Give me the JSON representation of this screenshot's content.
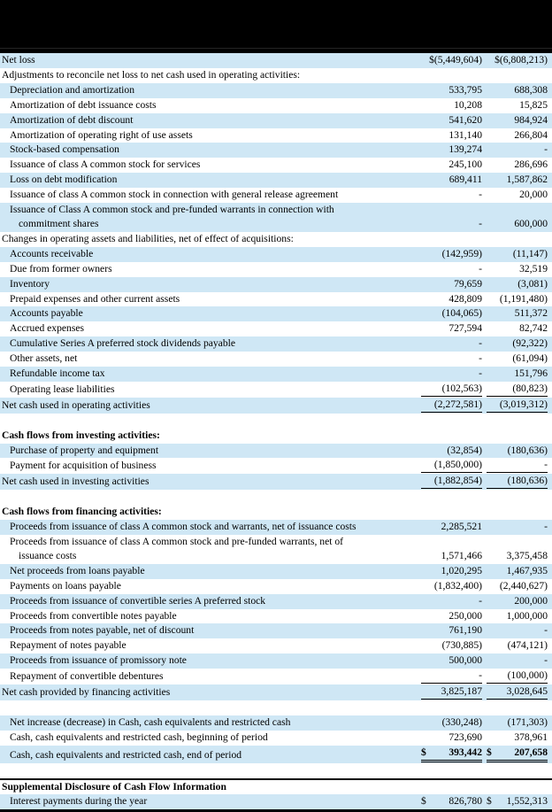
{
  "colors": {
    "row_shade": "#cfe7f5",
    "banner": "#000000",
    "text": "#000000"
  },
  "table": {
    "columns": [
      "line_item",
      "current_year",
      "prior_year"
    ],
    "rows": [
      {
        "label": "Net loss",
        "shade": true,
        "v1": "$(5,449,604)",
        "v2": "$(6,808,213)"
      },
      {
        "label": "Adjustments to reconcile net loss to net cash used in operating activities:"
      },
      {
        "label": "Depreciation and amortization",
        "indent": 1,
        "shade": true,
        "v1": "533,795",
        "v2": "688,308"
      },
      {
        "label": "Amortization of debt issuance costs",
        "indent": 1,
        "v1": "10,208",
        "v2": "15,825"
      },
      {
        "label": "Amortization of debt discount",
        "indent": 1,
        "shade": true,
        "v1": "541,620",
        "v2": "984,924"
      },
      {
        "label": "Amortization of operating right of use assets",
        "indent": 1,
        "v1": "131,140",
        "v2": "266,804"
      },
      {
        "label": "Stock-based compensation",
        "indent": 1,
        "shade": true,
        "v1": "139,274",
        "v2": "-"
      },
      {
        "label": "Issuance of class A common stock for services",
        "indent": 1,
        "v1": "245,100",
        "v2": "286,696"
      },
      {
        "label": "Loss on debt modification",
        "indent": 1,
        "shade": true,
        "v1": "689,411",
        "v2": "1,587,862"
      },
      {
        "label": "Issuance of class A common stock in connection with general release agreement",
        "indent": 1,
        "v1": "-",
        "v2": "20,000"
      },
      {
        "label": "Issuance of Class A common stock and pre-funded warrants in connection with",
        "label2": "commitment shares",
        "indent": 1,
        "shade": true,
        "v1": "-",
        "v2": "600,000"
      },
      {
        "label": "Changes in operating assets and liabilities, net of effect of acquisitions:"
      },
      {
        "label": "Accounts receivable",
        "indent": 1,
        "shade": true,
        "v1": "(142,959)",
        "v2": "(11,147)"
      },
      {
        "label": "Due from former owners",
        "indent": 1,
        "v1": "-",
        "v2": "32,519"
      },
      {
        "label": "Inventory",
        "indent": 1,
        "shade": true,
        "v1": "79,659",
        "v2": "(3,081)"
      },
      {
        "label": "Prepaid expenses and other current assets",
        "indent": 1,
        "v1": "428,809",
        "v2": "(1,191,480)"
      },
      {
        "label": "Accounts payable",
        "indent": 1,
        "shade": true,
        "v1": "(104,065)",
        "v2": "511,372"
      },
      {
        "label": "Accrued expenses",
        "indent": 1,
        "v1": "727,594",
        "v2": "82,742"
      },
      {
        "label": "Cumulative Series A preferred stock dividends payable",
        "indent": 1,
        "shade": true,
        "v1": "-",
        "v2": "(92,322)"
      },
      {
        "label": "Other assets, net",
        "indent": 1,
        "v1": "-",
        "v2": "(61,094)"
      },
      {
        "label": "Refundable income tax",
        "indent": 1,
        "shade": true,
        "v1": "-",
        "v2": "151,796"
      },
      {
        "label": "Operating lease liabilities",
        "indent": 1,
        "v1": "(102,563)",
        "v2": "(80,823)",
        "ul": "s"
      },
      {
        "label": "Net cash used in operating activities",
        "shade": true,
        "v1": "(2,272,581)",
        "v2": "(3,019,312)",
        "ul": "s"
      },
      {
        "blank": true
      },
      {
        "label": "Cash flows from investing activities:",
        "bold": true
      },
      {
        "label": "Purchase of property and equipment",
        "indent": 1,
        "shade": true,
        "v1": "(32,854)",
        "v2": "(180,636)"
      },
      {
        "label": "Payment for acquisition of business",
        "indent": 1,
        "v1": "(1,850,000)",
        "v2": "-",
        "ul": "s"
      },
      {
        "label": "Net cash used in investing activities",
        "shade": true,
        "v1": "(1,882,854)",
        "v2": "(180,636)",
        "ul": "s"
      },
      {
        "blank": true
      },
      {
        "label": "Cash flows from financing activities:",
        "bold": true
      },
      {
        "label": "Proceeds from issuance of class A common stock and warrants, net of issuance costs",
        "indent": 1,
        "shade": true,
        "v1": "2,285,521",
        "v2": "-"
      },
      {
        "label": "Proceeds from issuance of class A common stock and pre-funded warrants, net of",
        "label2": "issuance costs",
        "indent": 1,
        "v1": "1,571,466",
        "v2": "3,375,458"
      },
      {
        "label": "Net proceeds from loans payable",
        "indent": 1,
        "shade": true,
        "v1": "1,020,295",
        "v2": "1,467,935"
      },
      {
        "label": "Payments on loans payable",
        "indent": 1,
        "v1": "(1,832,400)",
        "v2": "(2,440,627)"
      },
      {
        "label": "Proceeds from issuance of convertible series A preferred stock",
        "indent": 1,
        "shade": true,
        "v1": "-",
        "v2": "200,000"
      },
      {
        "label": "Proceeds from convertible notes payable",
        "indent": 1,
        "v1": "250,000",
        "v2": "1,000,000"
      },
      {
        "label": "Proceeds from notes payable, net of discount",
        "indent": 1,
        "shade": true,
        "v1": "761,190",
        "v2": "-"
      },
      {
        "label": "Repayment of notes payable",
        "indent": 1,
        "v1": "(730,885)",
        "v2": "(474,121)"
      },
      {
        "label": "Proceeds from issuance of promissory note",
        "indent": 1,
        "shade": true,
        "v1": "500,000",
        "v2": "-"
      },
      {
        "label": "Repayment of convertible debentures",
        "indent": 1,
        "v1": "-",
        "v2": "(100,000)",
        "ul": "s"
      },
      {
        "label": "Net cash provided by financing activities",
        "shade": true,
        "v1": "3,825,187",
        "v2": "3,028,645",
        "ul": "s"
      },
      {
        "blank": true
      },
      {
        "label": "Net increase (decrease) in Cash, cash equivalents and restricted cash",
        "indent": 1,
        "shade": true,
        "v1": "(330,248)",
        "v2": "(171,303)"
      },
      {
        "label": "Cash, cash equivalents and restricted cash, beginning of period",
        "indent": 1,
        "v1": "723,690",
        "v2": "378,961"
      },
      {
        "label": "Cash, cash equivalents and restricted cash, end of period",
        "indent": 1,
        "shade": true,
        "d1": "$",
        "v1": "393,442",
        "d2": "$",
        "v2": "207,658",
        "ul": "d",
        "vbold": true
      },
      {
        "blank": true
      },
      {
        "label": "Supplemental Disclosure of Cash Flow Information",
        "bold": true,
        "topline": true
      },
      {
        "label": "Interest payments during the year",
        "indent": 1,
        "shade": true,
        "d1": "$",
        "v1": "826,780",
        "d2": "$",
        "v2": "1,552,313"
      }
    ]
  }
}
